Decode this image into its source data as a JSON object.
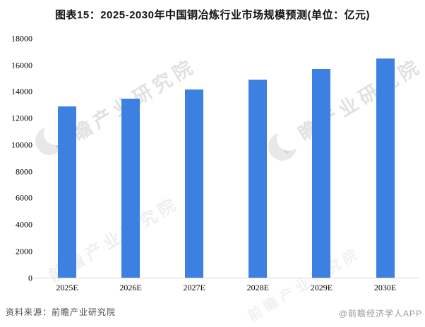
{
  "page": {
    "title": "图表15：2025-2030年中国铜冶炼行业市场规模预测(单位：亿元)"
  },
  "chart_data": {
    "type": "bar",
    "title": "图表15：2025-2030年中国铜冶炼行业市场规模预测(单位：亿元)",
    "unit": "亿元",
    "categories": [
      "2025E",
      "2026E",
      "2027E",
      "2028E",
      "2029E",
      "2030E"
    ],
    "values": [
      12900,
      13500,
      14200,
      14900,
      15700,
      16500
    ],
    "xlabel": "",
    "ylabel": "",
    "ylim": [
      0,
      18000
    ],
    "ytick_interval": 2000,
    "grid": false,
    "legend_position": "none",
    "bar_color": "#3c80e1"
  },
  "watermark": {
    "text": "前瞻产业研究院",
    "logo": "qianzhan-logo"
  },
  "footer": {
    "source": "资料来源：前瞻产业研究院",
    "brand": "@前瞻经济学人APP"
  },
  "colors": {
    "bar": "#3c80e1",
    "axis_line": "#d6d6d6",
    "tick_text": "#000000",
    "title_text": "#111111",
    "source_text": "#4d4d4d",
    "brand_text": "#9b9b9b",
    "background": "#ffffff"
  }
}
